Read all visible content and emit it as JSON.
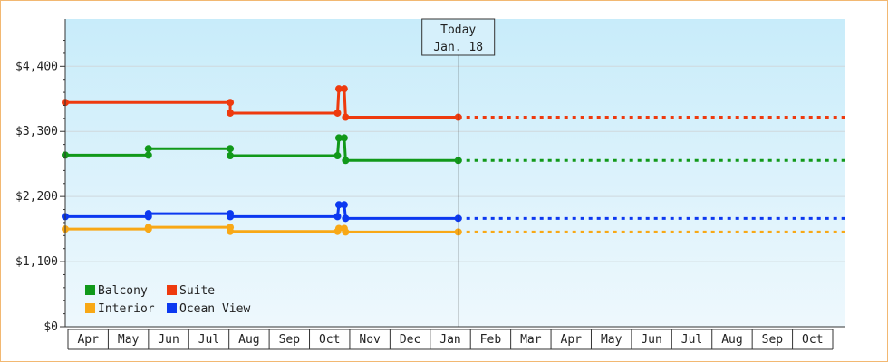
{
  "chart_data": {
    "type": "line",
    "title": "",
    "xlabel": "",
    "ylabel": "",
    "y_ticks": [
      "$0",
      "$1,100",
      "$2,200",
      "$3,300",
      "$4,400"
    ],
    "ylim": [
      0,
      5200
    ],
    "x_axis_months": [
      "Apr",
      "May",
      "Jun",
      "Jul",
      "Aug",
      "Sep",
      "Oct",
      "Nov",
      "Dec",
      "Jan",
      "Feb",
      "Mar",
      "Apr",
      "May",
      "Jun",
      "Jul",
      "Aug",
      "Sep",
      "Oct"
    ],
    "x_start": "2023-03-31",
    "x_end": "2024-11-01",
    "today": {
      "line1": "Today",
      "line2": "Jan. 18",
      "date": "2024-01-18"
    },
    "legend": [
      {
        "name": "Balcony",
        "color": "#11991a"
      },
      {
        "name": "Suite",
        "color": "#ee3a0e"
      },
      {
        "name": "Interior",
        "color": "#f8a816"
      },
      {
        "name": "Ocean View",
        "color": "#0c39f0"
      }
    ],
    "series": [
      {
        "name": "Suite",
        "color": "#ee3a0e",
        "points": [
          [
            "2023-03-31",
            3790
          ],
          [
            "2023-08-01",
            3790
          ],
          [
            "2023-08-01",
            3610
          ],
          [
            "2023-10-20",
            3610
          ],
          [
            "2023-10-21",
            4020
          ],
          [
            "2023-10-25",
            4020
          ],
          [
            "2023-10-26",
            3540
          ],
          [
            "2024-01-18",
            3540
          ]
        ],
        "projection_end": 3540
      },
      {
        "name": "Balcony",
        "color": "#11991a",
        "points": [
          [
            "2023-03-31",
            2900
          ],
          [
            "2023-06-01",
            2900
          ],
          [
            "2023-06-01",
            3010
          ],
          [
            "2023-08-01",
            3010
          ],
          [
            "2023-08-01",
            2890
          ],
          [
            "2023-10-20",
            2890
          ],
          [
            "2023-10-21",
            3190
          ],
          [
            "2023-10-25",
            3190
          ],
          [
            "2023-10-26",
            2810
          ],
          [
            "2024-01-18",
            2810
          ]
        ],
        "projection_end": 2810
      },
      {
        "name": "Ocean View",
        "color": "#0c39f0",
        "points": [
          [
            "2023-03-31",
            1860
          ],
          [
            "2023-06-01",
            1860
          ],
          [
            "2023-06-01",
            1910
          ],
          [
            "2023-08-01",
            1910
          ],
          [
            "2023-08-01",
            1860
          ],
          [
            "2023-10-20",
            1860
          ],
          [
            "2023-10-21",
            2060
          ],
          [
            "2023-10-25",
            2060
          ],
          [
            "2023-10-26",
            1830
          ],
          [
            "2024-01-18",
            1830
          ]
        ],
        "projection_end": 1830
      },
      {
        "name": "Interior",
        "color": "#f8a816",
        "points": [
          [
            "2023-03-31",
            1650
          ],
          [
            "2023-06-01",
            1650
          ],
          [
            "2023-06-01",
            1680
          ],
          [
            "2023-08-01",
            1680
          ],
          [
            "2023-08-01",
            1610
          ],
          [
            "2023-10-20",
            1610
          ],
          [
            "2023-10-21",
            1660
          ],
          [
            "2023-10-25",
            1660
          ],
          [
            "2023-10-26",
            1600
          ],
          [
            "2024-01-18",
            1600
          ]
        ],
        "projection_end": 1600
      }
    ]
  }
}
